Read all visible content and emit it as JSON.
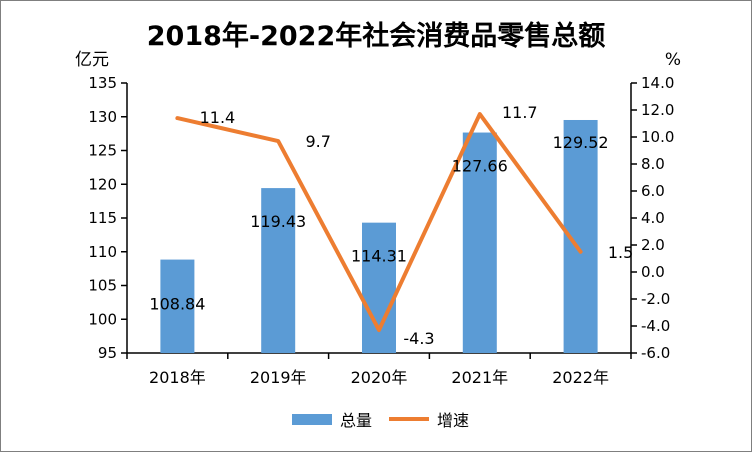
{
  "chart_data": {
    "type": "bar+line",
    "title": "2018年-2022年社会消费品零售总额",
    "categories": [
      "2018年",
      "2019年",
      "2020年",
      "2021年",
      "2022年"
    ],
    "series": [
      {
        "name": "总量",
        "type": "bar",
        "axis": "left",
        "color": "#5b9bd5",
        "values": [
          108.84,
          119.43,
          114.31,
          127.66,
          129.52
        ],
        "labels": [
          "108.84",
          "119.43",
          "114.31",
          "127.66",
          "129.52"
        ]
      },
      {
        "name": "增速",
        "type": "line",
        "axis": "right",
        "color": "#ed7d31",
        "values": [
          11.4,
          9.7,
          -4.3,
          11.7,
          1.5
        ],
        "labels": [
          "11.4",
          "9.7",
          "-4.3",
          "11.7",
          "1.5"
        ]
      }
    ],
    "y_left": {
      "label": "亿元",
      "range": [
        95,
        135
      ],
      "ticks": [
        "95",
        "100",
        "105",
        "110",
        "115",
        "120",
        "125",
        "130",
        "135"
      ]
    },
    "y_right": {
      "label": "%",
      "range": [
        -6,
        14
      ],
      "ticks": [
        "-6.0",
        "-4.0",
        "-2.0",
        "0.0",
        "2.0",
        "4.0",
        "6.0",
        "8.0",
        "10.0",
        "12.0",
        "14.0"
      ]
    },
    "grid": false,
    "legend_position": "bottom",
    "legend": [
      "总量",
      "增速"
    ]
  }
}
